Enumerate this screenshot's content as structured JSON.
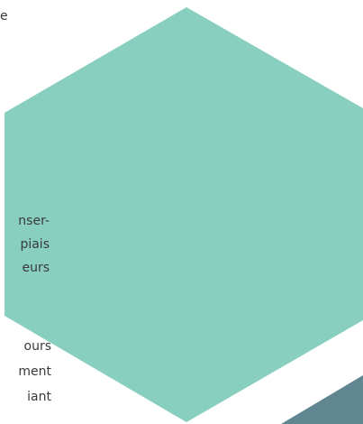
{
  "text_fragments": [
    "e",
    "nser-",
    "piais",
    "eurs",
    "ours",
    "ment",
    "iant"
  ]
}
